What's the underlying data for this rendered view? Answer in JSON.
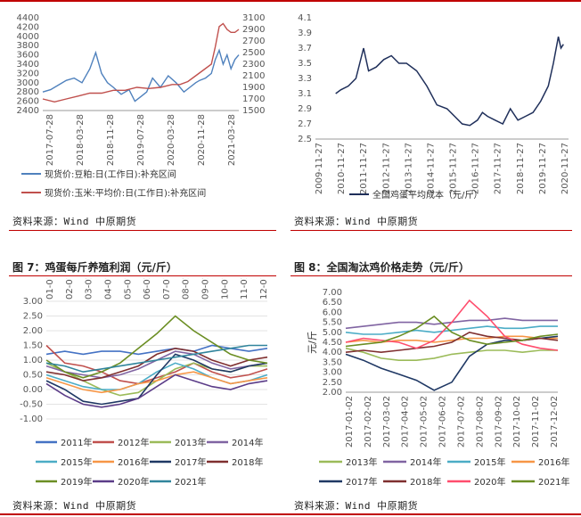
{
  "figure_titles": {
    "fig7": "图 7：鸡蛋每斤养殖利润（元/斤）",
    "fig8": "图 8：全国淘汰鸡价格走势（元/斤）"
  },
  "sources": {
    "src1": "资料来源：Wind 中原期货",
    "src2": "资料来源：Wind  中原期货",
    "src3": "资料来源：Wind 中原期货",
    "src4": "资料来源：Wind  中原期货"
  },
  "colors": {
    "accent": "#c00000"
  },
  "chart_data": [
    {
      "id": "soy-corn",
      "type": "line",
      "x_ticks": [
        "2017-07-28",
        "2018-03-28",
        "2018-11-28",
        "2019-07-28",
        "2020-03-28",
        "2020-11-28",
        "2021-03-28"
      ],
      "y_left_ticks": [
        "2400",
        "2600",
        "2800",
        "3000",
        "3200",
        "3400",
        "3600",
        "3800",
        "4000",
        "4200",
        "4400"
      ],
      "y_right_ticks": [
        "1500",
        "1700",
        "1900",
        "2100",
        "2300",
        "2500",
        "2700",
        "2900",
        "3100"
      ],
      "y_left_range": [
        2400,
        4400
      ],
      "y_right_range": [
        1500,
        3100
      ],
      "series": [
        {
          "name": "现货价:豆粕:日(工作日):补充区间",
          "axis": "left",
          "color": "#4f81bd",
          "x": [
            0,
            0.04,
            0.08,
            0.12,
            0.16,
            0.2,
            0.24,
            0.27,
            0.3,
            0.33,
            0.36,
            0.4,
            0.44,
            0.47,
            0.5,
            0.53,
            0.56,
            0.6,
            0.64,
            0.68,
            0.72,
            0.75,
            0.78,
            0.8,
            0.83,
            0.86,
            0.88,
            0.9,
            0.92,
            0.94,
            0.96,
            0.98,
            1.0
          ],
          "values": [
            2800,
            2850,
            2950,
            3050,
            3100,
            3000,
            3300,
            3650,
            3200,
            3000,
            2900,
            2750,
            2850,
            2600,
            2700,
            2800,
            3100,
            2900,
            3150,
            3000,
            2800,
            2900,
            3000,
            3050,
            3100,
            3200,
            3500,
            3700,
            3400,
            3600,
            3300,
            3500,
            3600
          ]
        },
        {
          "name": "现货价:玉米:平均价:日(工作日):补充区间",
          "axis": "right",
          "color": "#c0504d",
          "x": [
            0,
            0.06,
            0.12,
            0.18,
            0.24,
            0.3,
            0.36,
            0.42,
            0.48,
            0.54,
            0.6,
            0.66,
            0.7,
            0.74,
            0.78,
            0.82,
            0.86,
            0.88,
            0.9,
            0.92,
            0.94,
            0.96,
            0.98,
            1.0
          ],
          "values": [
            1700,
            1650,
            1700,
            1750,
            1800,
            1800,
            1850,
            1850,
            1900,
            1880,
            1900,
            1950,
            1950,
            2000,
            2100,
            2200,
            2300,
            2600,
            2950,
            3000,
            2900,
            2850,
            2850,
            2900
          ]
        }
      ]
    },
    {
      "id": "egg-cost",
      "type": "line",
      "x_ticks": [
        "2009-11-27",
        "2010-11-27",
        "2011-11-27",
        "2012-11-27",
        "2013-11-27",
        "2014-11-27",
        "2015-11-27",
        "2016-11-27",
        "2017-11-27",
        "2018-11-27",
        "2019-11-27",
        "2020-11-27"
      ],
      "y_ticks": [
        "2.5",
        "2.7",
        "2.9",
        "3.1",
        "3.3",
        "3.5",
        "3.7",
        "3.9",
        "4.1"
      ],
      "ylim": [
        2.5,
        4.1
      ],
      "series": [
        {
          "name": "全国鸡蛋平均成本（元/斤）",
          "color": "#1f2f5a",
          "x": [
            0.08,
            0.1,
            0.13,
            0.16,
            0.19,
            0.21,
            0.24,
            0.27,
            0.3,
            0.33,
            0.36,
            0.4,
            0.44,
            0.48,
            0.52,
            0.55,
            0.58,
            0.61,
            0.64,
            0.66,
            0.68,
            0.71,
            0.74,
            0.77,
            0.8,
            0.83,
            0.86,
            0.89,
            0.92,
            0.94,
            0.96,
            0.97,
            0.98
          ],
          "values": [
            3.1,
            3.15,
            3.2,
            3.3,
            3.7,
            3.4,
            3.45,
            3.55,
            3.6,
            3.5,
            3.5,
            3.4,
            3.2,
            2.95,
            2.9,
            2.8,
            2.7,
            2.68,
            2.75,
            2.85,
            2.8,
            2.75,
            2.7,
            2.9,
            2.75,
            2.8,
            2.85,
            3.0,
            3.2,
            3.5,
            3.85,
            3.7,
            3.75
          ]
        }
      ]
    },
    {
      "id": "fig7-profit",
      "type": "line",
      "x_ticks": [
        "01-01",
        "02-01",
        "03-01",
        "04-01",
        "05-01",
        "06-01",
        "07-01",
        "08-01",
        "09-01",
        "10-01",
        "11-01",
        "12-01"
      ],
      "y_ticks": [
        "-1.00",
        "-0.50",
        "0.00",
        "0.50",
        "1.00",
        "1.50",
        "2.00",
        "2.50",
        "3.00"
      ],
      "ylim": [
        -1.0,
        3.0
      ],
      "series": [
        {
          "name": "2011年",
          "color": "#4472c4",
          "values": [
            1.2,
            1.3,
            1.2,
            1.3,
            1.3,
            1.2,
            1.3,
            1.4,
            1.3,
            1.5,
            1.4,
            1.3,
            1.4
          ]
        },
        {
          "name": "2012年",
          "color": "#c0504d",
          "values": [
            1.5,
            0.9,
            0.8,
            0.6,
            0.3,
            0.2,
            0.4,
            0.6,
            0.9,
            0.6,
            0.4,
            0.5,
            0.7
          ]
        },
        {
          "name": "2013年",
          "color": "#9bbb59",
          "values": [
            0.9,
            0.6,
            0.3,
            0.0,
            -0.2,
            -0.1,
            0.3,
            0.7,
            0.9,
            0.7,
            0.6,
            0.8,
            0.8
          ]
        },
        {
          "name": "2014年",
          "color": "#8064a2",
          "values": [
            0.8,
            0.6,
            0.5,
            0.4,
            0.5,
            0.7,
            1.0,
            1.3,
            1.2,
            0.9,
            0.7,
            0.8,
            0.9
          ]
        },
        {
          "name": "2015年",
          "color": "#4bacc6",
          "values": [
            0.5,
            0.3,
            0.1,
            0.0,
            0.0,
            0.2,
            0.6,
            0.9,
            0.7,
            0.4,
            0.2,
            0.3,
            0.5
          ]
        },
        {
          "name": "2016年",
          "color": "#f79646",
          "values": [
            0.4,
            0.2,
            0.0,
            -0.1,
            0.0,
            0.2,
            0.3,
            0.5,
            0.6,
            0.4,
            0.2,
            0.3,
            0.4
          ]
        },
        {
          "name": "2017年",
          "color": "#1f3864",
          "values": [
            0.3,
            0.0,
            -0.4,
            -0.5,
            -0.4,
            -0.3,
            0.5,
            1.2,
            1.0,
            0.7,
            0.6,
            0.8,
            0.9
          ]
        },
        {
          "name": "2018年",
          "color": "#7f2f2f",
          "values": [
            0.6,
            0.5,
            0.3,
            0.4,
            0.6,
            0.8,
            1.2,
            1.4,
            1.3,
            1.0,
            0.8,
            1.0,
            1.1
          ]
        },
        {
          "name": "2019年",
          "color": "#6b8e23",
          "values": [
            1.0,
            0.6,
            0.4,
            0.6,
            0.9,
            1.4,
            1.9,
            2.5,
            2.0,
            1.6,
            1.2,
            1.0,
            0.9
          ]
        },
        {
          "name": "2020年",
          "color": "#5b3c88",
          "values": [
            0.2,
            -0.2,
            -0.5,
            -0.6,
            -0.5,
            -0.3,
            0.1,
            0.5,
            0.3,
            0.1,
            0.0,
            0.2,
            0.3
          ]
        },
        {
          "name": "2021年",
          "color": "#31859c",
          "values": [
            0.9,
            0.8,
            0.6,
            0.7,
            0.8,
            0.9,
            1.0,
            1.1,
            1.2,
            1.3,
            1.4,
            1.5,
            1.5
          ]
        }
      ]
    },
    {
      "id": "fig8-culled",
      "type": "line",
      "x_ticks": [
        "2017-01-02",
        "2017-02-02",
        "2017-03-02",
        "2017-04-02",
        "2017-05-02",
        "2017-06-02",
        "2017-07-02",
        "2017-08-02",
        "2017-09-02",
        "2017-10-02",
        "2017-11-02",
        "2017-12-02"
      ],
      "y_ticks": [
        "2.00",
        "2.50",
        "3.00",
        "3.50",
        "4.00",
        "4.50",
        "5.00",
        "5.50",
        "6.00",
        "6.50",
        "7.00"
      ],
      "ylim": [
        2.0,
        7.0
      ],
      "ylabel": "元/斤",
      "series": [
        {
          "name": "2013年",
          "color": "#9bbb59",
          "values": [
            4.2,
            4.0,
            3.7,
            3.6,
            3.6,
            3.7,
            3.9,
            4.0,
            4.1,
            4.1,
            4.0,
            4.1,
            4.1
          ]
        },
        {
          "name": "2014年",
          "color": "#8064a2",
          "values": [
            5.2,
            5.3,
            5.4,
            5.5,
            5.5,
            5.4,
            5.5,
            5.6,
            5.6,
            5.7,
            5.6,
            5.6,
            5.6
          ]
        },
        {
          "name": "2015年",
          "color": "#4bacc6",
          "values": [
            5.0,
            4.9,
            4.9,
            5.0,
            5.1,
            5.0,
            5.1,
            5.2,
            5.3,
            5.2,
            5.2,
            5.3,
            5.3
          ]
        },
        {
          "name": "2016年",
          "color": "#f79646",
          "values": [
            4.5,
            4.6,
            4.5,
            4.6,
            4.6,
            4.5,
            4.6,
            4.7,
            4.7,
            4.8,
            4.8,
            4.7,
            4.7
          ]
        },
        {
          "name": "2017年",
          "color": "#1f3864",
          "values": [
            3.9,
            3.6,
            3.2,
            2.9,
            2.6,
            2.1,
            2.5,
            3.8,
            4.4,
            4.6,
            4.6,
            4.7,
            4.8
          ]
        },
        {
          "name": "2018年",
          "color": "#7f2f2f",
          "values": [
            4.0,
            4.1,
            4.0,
            4.1,
            4.2,
            4.3,
            4.5,
            5.0,
            4.8,
            4.7,
            4.6,
            4.7,
            4.6
          ]
        },
        {
          "name": "2020年",
          "color": "#ff4d6d",
          "values": [
            4.5,
            4.7,
            4.6,
            4.5,
            4.2,
            4.6,
            5.5,
            6.6,
            5.8,
            4.8,
            4.4,
            4.2,
            4.1
          ]
        },
        {
          "name": "2021年",
          "color": "#6b8e23",
          "values": [
            4.3,
            4.4,
            4.5,
            4.8,
            5.2,
            5.8,
            5.0,
            4.6,
            4.4,
            4.5,
            4.6,
            4.8,
            4.9
          ]
        }
      ]
    }
  ]
}
